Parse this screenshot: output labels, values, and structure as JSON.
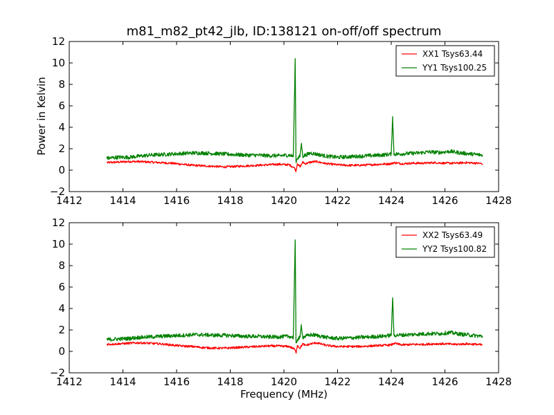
{
  "figure": {
    "title": "m81_m82_pt42_jlb, ID:138121 on-off/off spectrum",
    "xlabel": "Frequency (MHz)"
  },
  "colors": {
    "xx": "#ff0000",
    "yy": "#008000",
    "axes": "#000000"
  },
  "chart_data": [
    {
      "type": "line",
      "title": "",
      "xlabel": "",
      "ylabel": "Power in Kelvin",
      "xlim": [
        1412,
        1428
      ],
      "ylim": [
        -2,
        12
      ],
      "xticks": [
        1412,
        1414,
        1416,
        1418,
        1420,
        1422,
        1424,
        1426,
        1428
      ],
      "yticks": [
        -2,
        0,
        2,
        4,
        6,
        8,
        10,
        12
      ],
      "ytick_labels": [
        "−2",
        "0",
        "2",
        "4",
        "6",
        "8",
        "10",
        "12"
      ],
      "grid": false,
      "legend_position": "top-right",
      "series": [
        {
          "name": "XX1 Tsys63.44",
          "color": "#ff0000",
          "x": [
            1413.4,
            1413.8,
            1414.2,
            1414.6,
            1415.0,
            1415.4,
            1415.8,
            1416.2,
            1416.6,
            1417.0,
            1417.4,
            1417.8,
            1418.2,
            1418.6,
            1419.0,
            1419.4,
            1419.8,
            1420.2,
            1420.4,
            1420.45,
            1420.5,
            1420.6,
            1420.7,
            1420.8,
            1421.0,
            1421.2,
            1421.6,
            1422.0,
            1422.4,
            1422.8,
            1423.2,
            1423.6,
            1424.0,
            1424.1,
            1424.4,
            1424.8,
            1425.2,
            1425.6,
            1426.0,
            1426.4,
            1426.8,
            1427.2,
            1427.4
          ],
          "y": [
            0.7,
            0.75,
            0.8,
            0.8,
            0.75,
            0.7,
            0.65,
            0.55,
            0.45,
            0.4,
            0.35,
            0.3,
            0.35,
            0.4,
            0.45,
            0.5,
            0.55,
            0.5,
            0.2,
            -0.1,
            0.6,
            0.3,
            0.75,
            0.6,
            0.75,
            0.8,
            0.6,
            0.5,
            0.45,
            0.45,
            0.5,
            0.55,
            0.6,
            0.7,
            0.6,
            0.65,
            0.65,
            0.7,
            0.65,
            0.65,
            0.7,
            0.65,
            0.6
          ]
        },
        {
          "name": "YY1 Tsys100.25",
          "color": "#008000",
          "x": [
            1413.4,
            1413.8,
            1414.2,
            1414.6,
            1415.0,
            1415.4,
            1415.8,
            1416.2,
            1416.6,
            1417.0,
            1417.4,
            1417.8,
            1418.2,
            1418.6,
            1419.0,
            1419.4,
            1419.8,
            1420.2,
            1420.35,
            1420.42,
            1420.45,
            1420.5,
            1420.6,
            1420.65,
            1420.7,
            1420.8,
            1421.0,
            1421.2,
            1421.6,
            1422.0,
            1422.4,
            1422.8,
            1423.2,
            1423.6,
            1424.0,
            1424.05,
            1424.1,
            1424.2,
            1424.6,
            1425.0,
            1425.4,
            1425.8,
            1426.2,
            1426.6,
            1427.0,
            1427.4
          ],
          "y": [
            1.1,
            1.2,
            1.2,
            1.3,
            1.4,
            1.45,
            1.5,
            1.55,
            1.6,
            1.6,
            1.55,
            1.5,
            1.45,
            1.4,
            1.4,
            1.35,
            1.35,
            1.4,
            1.3,
            10.4,
            0.8,
            1.1,
            1.3,
            2.5,
            1.3,
            1.4,
            1.6,
            1.5,
            1.3,
            1.2,
            1.25,
            1.3,
            1.35,
            1.4,
            1.5,
            5.0,
            1.5,
            1.5,
            1.55,
            1.6,
            1.7,
            1.65,
            1.75,
            1.6,
            1.5,
            1.4
          ]
        }
      ]
    },
    {
      "type": "line",
      "title": "",
      "xlabel": "Frequency (MHz)",
      "ylabel": "",
      "xlim": [
        1412,
        1428
      ],
      "ylim": [
        -2,
        12
      ],
      "xticks": [
        1412,
        1414,
        1416,
        1418,
        1420,
        1422,
        1424,
        1426,
        1428
      ],
      "yticks": [
        -2,
        0,
        2,
        4,
        6,
        8,
        10,
        12
      ],
      "ytick_labels": [
        "−2",
        "0",
        "2",
        "4",
        "6",
        "8",
        "10",
        "12"
      ],
      "grid": false,
      "legend_position": "top-right",
      "series": [
        {
          "name": "XX2 Tsys63.49",
          "color": "#ff0000",
          "x": [
            1413.4,
            1413.8,
            1414.2,
            1414.6,
            1415.0,
            1415.4,
            1415.8,
            1416.2,
            1416.6,
            1417.0,
            1417.4,
            1417.8,
            1418.2,
            1418.6,
            1419.0,
            1419.4,
            1419.8,
            1420.2,
            1420.4,
            1420.45,
            1420.5,
            1420.6,
            1420.7,
            1420.8,
            1421.0,
            1421.2,
            1421.6,
            1422.0,
            1422.4,
            1422.8,
            1423.2,
            1423.6,
            1424.0,
            1424.1,
            1424.4,
            1424.8,
            1425.2,
            1425.6,
            1426.0,
            1426.4,
            1426.8,
            1427.2,
            1427.4
          ],
          "y": [
            0.65,
            0.7,
            0.75,
            0.8,
            0.75,
            0.7,
            0.6,
            0.5,
            0.45,
            0.35,
            0.3,
            0.3,
            0.35,
            0.4,
            0.45,
            0.5,
            0.5,
            0.45,
            0.2,
            -0.15,
            0.55,
            0.3,
            0.7,
            0.55,
            0.7,
            0.8,
            0.55,
            0.45,
            0.45,
            0.45,
            0.5,
            0.55,
            0.6,
            0.75,
            0.6,
            0.65,
            0.65,
            0.7,
            0.7,
            0.65,
            0.7,
            0.65,
            0.6
          ]
        },
        {
          "name": "YY2 Tsys100.82",
          "color": "#008000",
          "x": [
            1413.4,
            1413.8,
            1414.2,
            1414.6,
            1415.0,
            1415.4,
            1415.8,
            1416.2,
            1416.6,
            1417.0,
            1417.4,
            1417.8,
            1418.2,
            1418.6,
            1419.0,
            1419.4,
            1419.8,
            1420.2,
            1420.35,
            1420.42,
            1420.45,
            1420.5,
            1420.6,
            1420.65,
            1420.7,
            1420.8,
            1421.0,
            1421.2,
            1421.6,
            1422.0,
            1422.4,
            1422.8,
            1423.2,
            1423.6,
            1424.0,
            1424.05,
            1424.1,
            1424.2,
            1424.6,
            1425.0,
            1425.4,
            1425.8,
            1426.2,
            1426.6,
            1427.0,
            1427.4
          ],
          "y": [
            1.1,
            1.15,
            1.2,
            1.3,
            1.35,
            1.4,
            1.45,
            1.5,
            1.55,
            1.55,
            1.5,
            1.5,
            1.45,
            1.4,
            1.4,
            1.35,
            1.35,
            1.4,
            1.3,
            10.4,
            0.8,
            1.1,
            1.3,
            2.5,
            1.3,
            1.4,
            1.55,
            1.5,
            1.3,
            1.2,
            1.25,
            1.3,
            1.35,
            1.4,
            1.5,
            5.0,
            1.5,
            1.5,
            1.55,
            1.6,
            1.65,
            1.65,
            1.75,
            1.6,
            1.5,
            1.4
          ]
        }
      ]
    }
  ]
}
